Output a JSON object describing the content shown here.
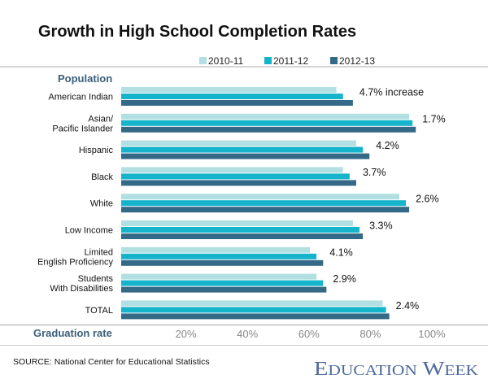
{
  "chart_data": {
    "type": "bar",
    "orientation": "horizontal",
    "title": "Growth in High School Completion Rates",
    "category_header": "Population",
    "xlabel": "Graduation rate",
    "xlim": [
      0,
      100
    ],
    "xticks": [
      "20%",
      "40%",
      "60%",
      "80%",
      "100%"
    ],
    "xtick_values": [
      20,
      40,
      60,
      80,
      100
    ],
    "legend_position": "top",
    "grid": false,
    "categories": [
      [
        "American Indian"
      ],
      [
        "Asian/",
        "Pacific Islander"
      ],
      [
        "Hispanic"
      ],
      [
        "Black"
      ],
      [
        "White"
      ],
      [
        "Low Income"
      ],
      [
        "Limited",
        "English Proficiency"
      ],
      [
        "Students",
        "With Disabilities"
      ],
      [
        "TOTAL"
      ]
    ],
    "series": [
      {
        "name": "2010-11",
        "color": "#b2dfe2",
        "values": [
          65,
          87,
          71,
          67,
          84,
          70,
          57,
          59,
          79
        ]
      },
      {
        "name": "2011-12",
        "color": "#16b4cb",
        "values": [
          67,
          88,
          73,
          69,
          86,
          72,
          59,
          61,
          80
        ]
      },
      {
        "name": "2012-13",
        "color": "#346a88",
        "values": [
          70,
          89,
          75,
          71,
          87,
          73,
          61,
          62,
          81
        ]
      }
    ],
    "annotations": [
      "4.7% increase",
      "1.7%",
      "4.2%",
      "3.7%",
      "2.6%",
      "3.3%",
      "4.1%",
      "2.9%",
      "2.4%"
    ]
  },
  "footer": {
    "source": "SOURCE: National Center for Educational Statistics",
    "logo": "Education Week"
  }
}
